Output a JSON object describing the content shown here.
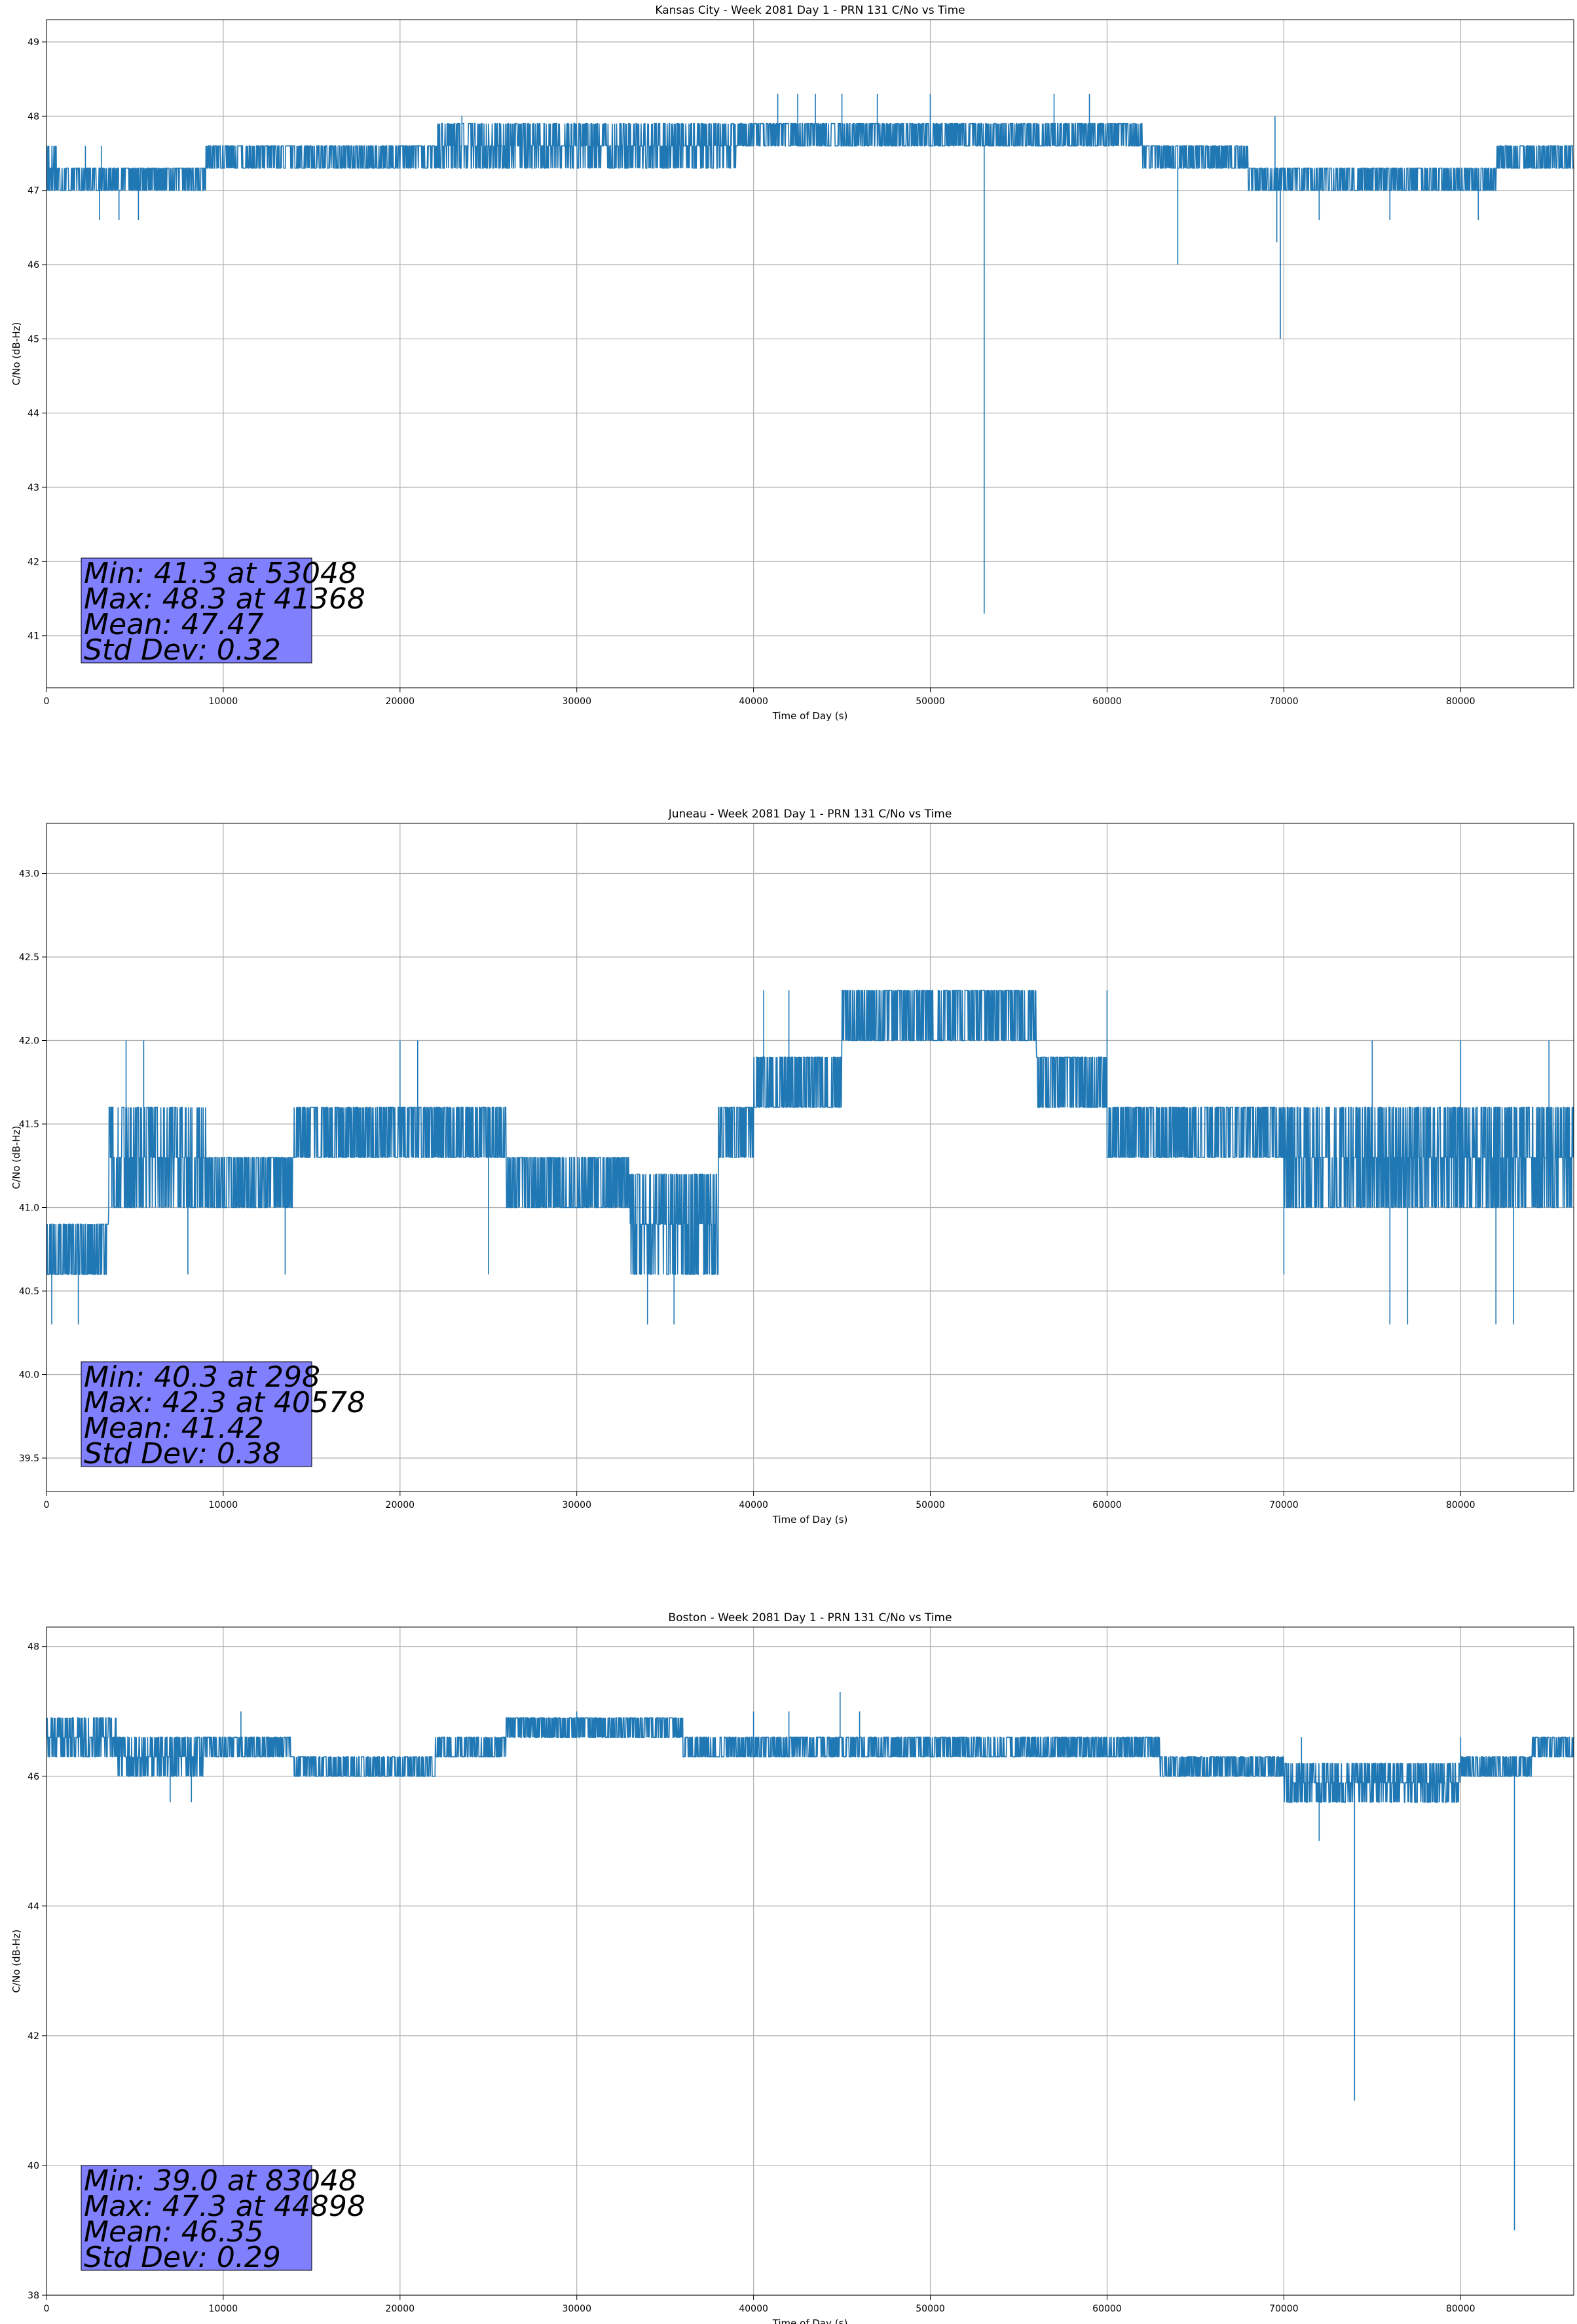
{
  "colors": {
    "series": "#1f77b4",
    "stats_box": "#8080ff",
    "grid": "#b0b0b0"
  },
  "chart_data": [
    {
      "type": "line",
      "title": "Kansas City - Week 2081 Day 1 - PRN 131 C/No vs Time",
      "xlabel": "Time of Day (s)",
      "ylabel": "C/No (dB-Hz)",
      "xlim": [
        0,
        86400
      ],
      "ylim": [
        40.3,
        49.3
      ],
      "xticks": [
        0,
        10000,
        20000,
        30000,
        40000,
        50000,
        60000,
        70000,
        80000
      ],
      "yticks": [
        41,
        42,
        43,
        44,
        45,
        46,
        47,
        48,
        49
      ],
      "grid": true,
      "stats": [
        "Min: 41.3 at 53048",
        "Max: 48.3 at 41368",
        "Mean: 47.47",
        "Std Dev: 0.32"
      ],
      "series": [
        {
          "bands": [
            {
              "x": [
                0,
                700
              ],
              "lo": 47.0,
              "hi": 47.6
            },
            {
              "x": [
                700,
                6000
              ],
              "lo": 47.0,
              "hi": 47.3
            },
            {
              "x": [
                6000,
                9000
              ],
              "lo": 47.0,
              "hi": 47.3
            },
            {
              "x": [
                9000,
                15000
              ],
              "lo": 47.3,
              "hi": 47.6
            },
            {
              "x": [
                15000,
                22000
              ],
              "lo": 47.3,
              "hi": 47.6
            },
            {
              "x": [
                22000,
                39000
              ],
              "lo": 47.3,
              "hi": 48.0
            },
            {
              "x": [
                39000,
                41000
              ],
              "lo": 47.6,
              "hi": 48.0
            },
            {
              "x": [
                41000,
                45000
              ],
              "lo": 47.6,
              "hi": 48.0
            },
            {
              "x": [
                45000,
                62000
              ],
              "lo": 47.6,
              "hi": 48.0
            },
            {
              "x": [
                62000,
                68000
              ],
              "lo": 47.3,
              "hi": 47.6
            },
            {
              "x": [
                68000,
                82000
              ],
              "lo": 47.0,
              "hi": 47.3
            },
            {
              "x": [
                82000,
                86400
              ],
              "lo": 47.3,
              "hi": 47.6
            }
          ],
          "spikes_up": [
            [
              2200,
              47.6
            ],
            [
              3100,
              47.6
            ],
            [
              23500,
              48.0
            ],
            [
              41368,
              48.3
            ],
            [
              42500,
              48.3
            ],
            [
              43500,
              48.3
            ],
            [
              45000,
              48.3
            ],
            [
              47000,
              48.3
            ],
            [
              50000,
              48.3
            ],
            [
              57000,
              48.3
            ],
            [
              59000,
              48.3
            ],
            [
              69500,
              48.0
            ]
          ],
          "dips": [
            [
              3000,
              46.6
            ],
            [
              4100,
              46.6
            ],
            [
              5200,
              46.6
            ],
            [
              53048,
              41.3
            ],
            [
              64000,
              46.0
            ],
            [
              69800,
              45.0
            ],
            [
              69600,
              46.3
            ],
            [
              72000,
              46.6
            ],
            [
              76000,
              46.6
            ],
            [
              81000,
              46.6
            ]
          ]
        }
      ]
    },
    {
      "type": "line",
      "title": "Juneau - Week 2081 Day 1 - PRN 131 C/No vs Time",
      "xlabel": "Time of Day (s)",
      "ylabel": "C/No (dB-Hz)",
      "xlim": [
        0,
        86400
      ],
      "ylim": [
        39.3,
        43.3
      ],
      "xticks": [
        0,
        10000,
        20000,
        30000,
        40000,
        50000,
        60000,
        70000,
        80000
      ],
      "yticks": [
        39.5,
        40.0,
        40.5,
        41.0,
        41.5,
        42.0,
        42.5,
        43.0
      ],
      "grid": true,
      "stats": [
        "Min: 40.3 at 298",
        "Max: 42.3 at 40578",
        "Mean: 41.42",
        "Std Dev: 0.38"
      ],
      "series": [
        {
          "bands": [
            {
              "x": [
                0,
                3500
              ],
              "lo": 40.6,
              "hi": 41.0
            },
            {
              "x": [
                3500,
                9000
              ],
              "lo": 41.0,
              "hi": 41.6
            },
            {
              "x": [
                9000,
                14000
              ],
              "lo": 41.0,
              "hi": 41.3
            },
            {
              "x": [
                14000,
                26000
              ],
              "lo": 41.3,
              "hi": 41.6
            },
            {
              "x": [
                26000,
                33000
              ],
              "lo": 41.0,
              "hi": 41.3
            },
            {
              "x": [
                33000,
                38000
              ],
              "lo": 40.6,
              "hi": 41.3
            },
            {
              "x": [
                38000,
                40000
              ],
              "lo": 41.3,
              "hi": 41.6
            },
            {
              "x": [
                40000,
                45000
              ],
              "lo": 41.6,
              "hi": 42.0
            },
            {
              "x": [
                45000,
                56000
              ],
              "lo": 42.0,
              "hi": 42.3
            },
            {
              "x": [
                56000,
                60000
              ],
              "lo": 41.6,
              "hi": 42.0
            },
            {
              "x": [
                60000,
                70000
              ],
              "lo": 41.3,
              "hi": 41.6
            },
            {
              "x": [
                70000,
                86400
              ],
              "lo": 41.0,
              "hi": 41.6
            }
          ],
          "spikes_up": [
            [
              4500,
              42.0
            ],
            [
              5500,
              42.0
            ],
            [
              20000,
              42.0
            ],
            [
              21000,
              42.0
            ],
            [
              40578,
              42.3
            ],
            [
              42000,
              42.3
            ],
            [
              46000,
              42.3
            ],
            [
              50000,
              42.3
            ],
            [
              60000,
              42.3
            ],
            [
              75000,
              42.0
            ],
            [
              80000,
              42.0
            ],
            [
              85000,
              42.0
            ]
          ],
          "dips": [
            [
              298,
              40.3
            ],
            [
              1800,
              40.3
            ],
            [
              8000,
              40.6
            ],
            [
              13500,
              40.6
            ],
            [
              25000,
              40.6
            ],
            [
              34000,
              40.3
            ],
            [
              35500,
              40.3
            ],
            [
              70000,
              40.6
            ],
            [
              76000,
              40.3
            ],
            [
              77000,
              40.3
            ],
            [
              82000,
              40.3
            ],
            [
              83000,
              40.3
            ]
          ]
        }
      ]
    },
    {
      "type": "line",
      "title": "Boston - Week 2081 Day 1 - PRN 131 C/No vs Time",
      "xlabel": "Time of Day (s)",
      "ylabel": "C/No (dB-Hz)",
      "xlim": [
        0,
        86400
      ],
      "ylim": [
        38.0,
        48.3
      ],
      "xticks": [
        0,
        10000,
        20000,
        30000,
        40000,
        50000,
        60000,
        70000,
        80000
      ],
      "yticks": [
        38,
        40,
        42,
        44,
        46,
        48
      ],
      "grid": true,
      "stats": [
        "Min: 39.0 at 83048",
        "Max: 47.3 at 44898",
        "Mean: 46.35",
        "Std Dev: 0.29"
      ],
      "series": [
        {
          "bands": [
            {
              "x": [
                0,
                4000
              ],
              "lo": 46.3,
              "hi": 47.0
            },
            {
              "x": [
                4000,
                9000
              ],
              "lo": 46.0,
              "hi": 46.6
            },
            {
              "x": [
                9000,
                14000
              ],
              "lo": 46.3,
              "hi": 46.6
            },
            {
              "x": [
                14000,
                22000
              ],
              "lo": 46.0,
              "hi": 46.3
            },
            {
              "x": [
                22000,
                26000
              ],
              "lo": 46.3,
              "hi": 46.6
            },
            {
              "x": [
                26000,
                36000
              ],
              "lo": 46.6,
              "hi": 47.0
            },
            {
              "x": [
                36000,
                39000
              ],
              "lo": 46.3,
              "hi": 46.6
            },
            {
              "x": [
                39000,
                52000
              ],
              "lo": 46.3,
              "hi": 46.6
            },
            {
              "x": [
                52000,
                63000
              ],
              "lo": 46.3,
              "hi": 46.6
            },
            {
              "x": [
                63000,
                70000
              ],
              "lo": 46.0,
              "hi": 46.3
            },
            {
              "x": [
                70000,
                80000
              ],
              "lo": 45.6,
              "hi": 46.3
            },
            {
              "x": [
                80000,
                86400
              ],
              "lo": 46.0,
              "hi": 46.3
            },
            {
              "x": [
                84000,
                86400
              ],
              "lo": 46.3,
              "hi": 46.6
            }
          ],
          "spikes_up": [
            [
              11000,
              47.0
            ],
            [
              30000,
              47.0
            ],
            [
              40000,
              47.0
            ],
            [
              42000,
              47.0
            ],
            [
              44898,
              47.3
            ],
            [
              46000,
              47.0
            ],
            [
              71000,
              46.6
            ],
            [
              80000,
              46.6
            ]
          ],
          "dips": [
            [
              7000,
              45.6
            ],
            [
              8200,
              45.6
            ],
            [
              74000,
              41.0
            ],
            [
              72000,
              45.0
            ],
            [
              76000,
              45.6
            ],
            [
              78000,
              45.6
            ],
            [
              83048,
              39.0
            ]
          ]
        }
      ]
    }
  ]
}
